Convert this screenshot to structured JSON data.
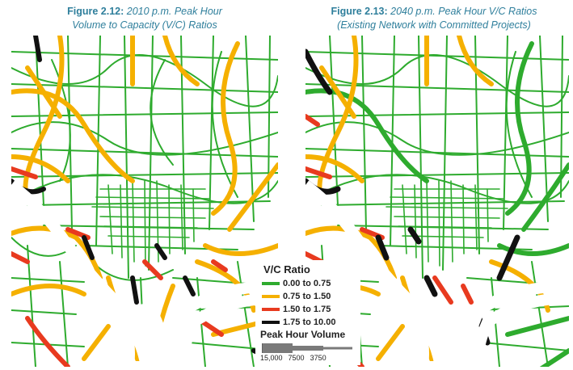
{
  "captions": {
    "left": {
      "figure": "Figure 2.12:",
      "line1": "2010 p.m. Peak Hour",
      "line2": "Volume to Capacity (V/C) Ratios"
    },
    "right": {
      "figure": "Figure 2.13:",
      "line1": "2040 p.m. Peak Hour V/C Ratios",
      "line2": "(Existing Network with Committed Projects)"
    }
  },
  "legend": {
    "title": "V/C Ratio",
    "items": [
      {
        "label": "0.00 to 0.75",
        "color": "#2eab2e"
      },
      {
        "label": "0.75 to 1.50",
        "color": "#f5b000"
      },
      {
        "label": "1.50 to 1.75",
        "color": "#e83a1f"
      },
      {
        "label": "1.75 to 10.00",
        "color": "#111111"
      }
    ],
    "volume_title": "Peak Hour Volume",
    "volume_labels": [
      "15,000",
      "7500",
      "3750"
    ]
  },
  "colors": {
    "caption": "#2f7f9c",
    "water": "#ffffff",
    "green": "#2eab2e",
    "orange": "#f5b000",
    "red": "#e83a1f",
    "black": "#111111"
  }
}
